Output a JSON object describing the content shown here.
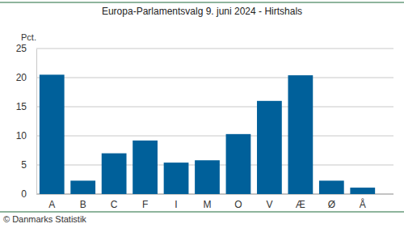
{
  "chart_data": {
    "type": "bar",
    "title": "Europa-Parlamentsvalg 9. juni 2024 - Hirtshals",
    "y_label": "Pct.",
    "source": "© Danmarks Statistik",
    "categories": [
      "A",
      "B",
      "C",
      "F",
      "I",
      "M",
      "O",
      "V",
      "Æ",
      "Ø",
      "Å"
    ],
    "values": [
      20.5,
      2.3,
      7.0,
      9.2,
      5.4,
      5.8,
      10.3,
      16.0,
      20.4,
      2.3,
      1.1
    ],
    "color": "#00609a",
    "ylim": [
      0,
      25
    ],
    "yticks": [
      0,
      5,
      10,
      15,
      20,
      25
    ],
    "grid": true
  }
}
